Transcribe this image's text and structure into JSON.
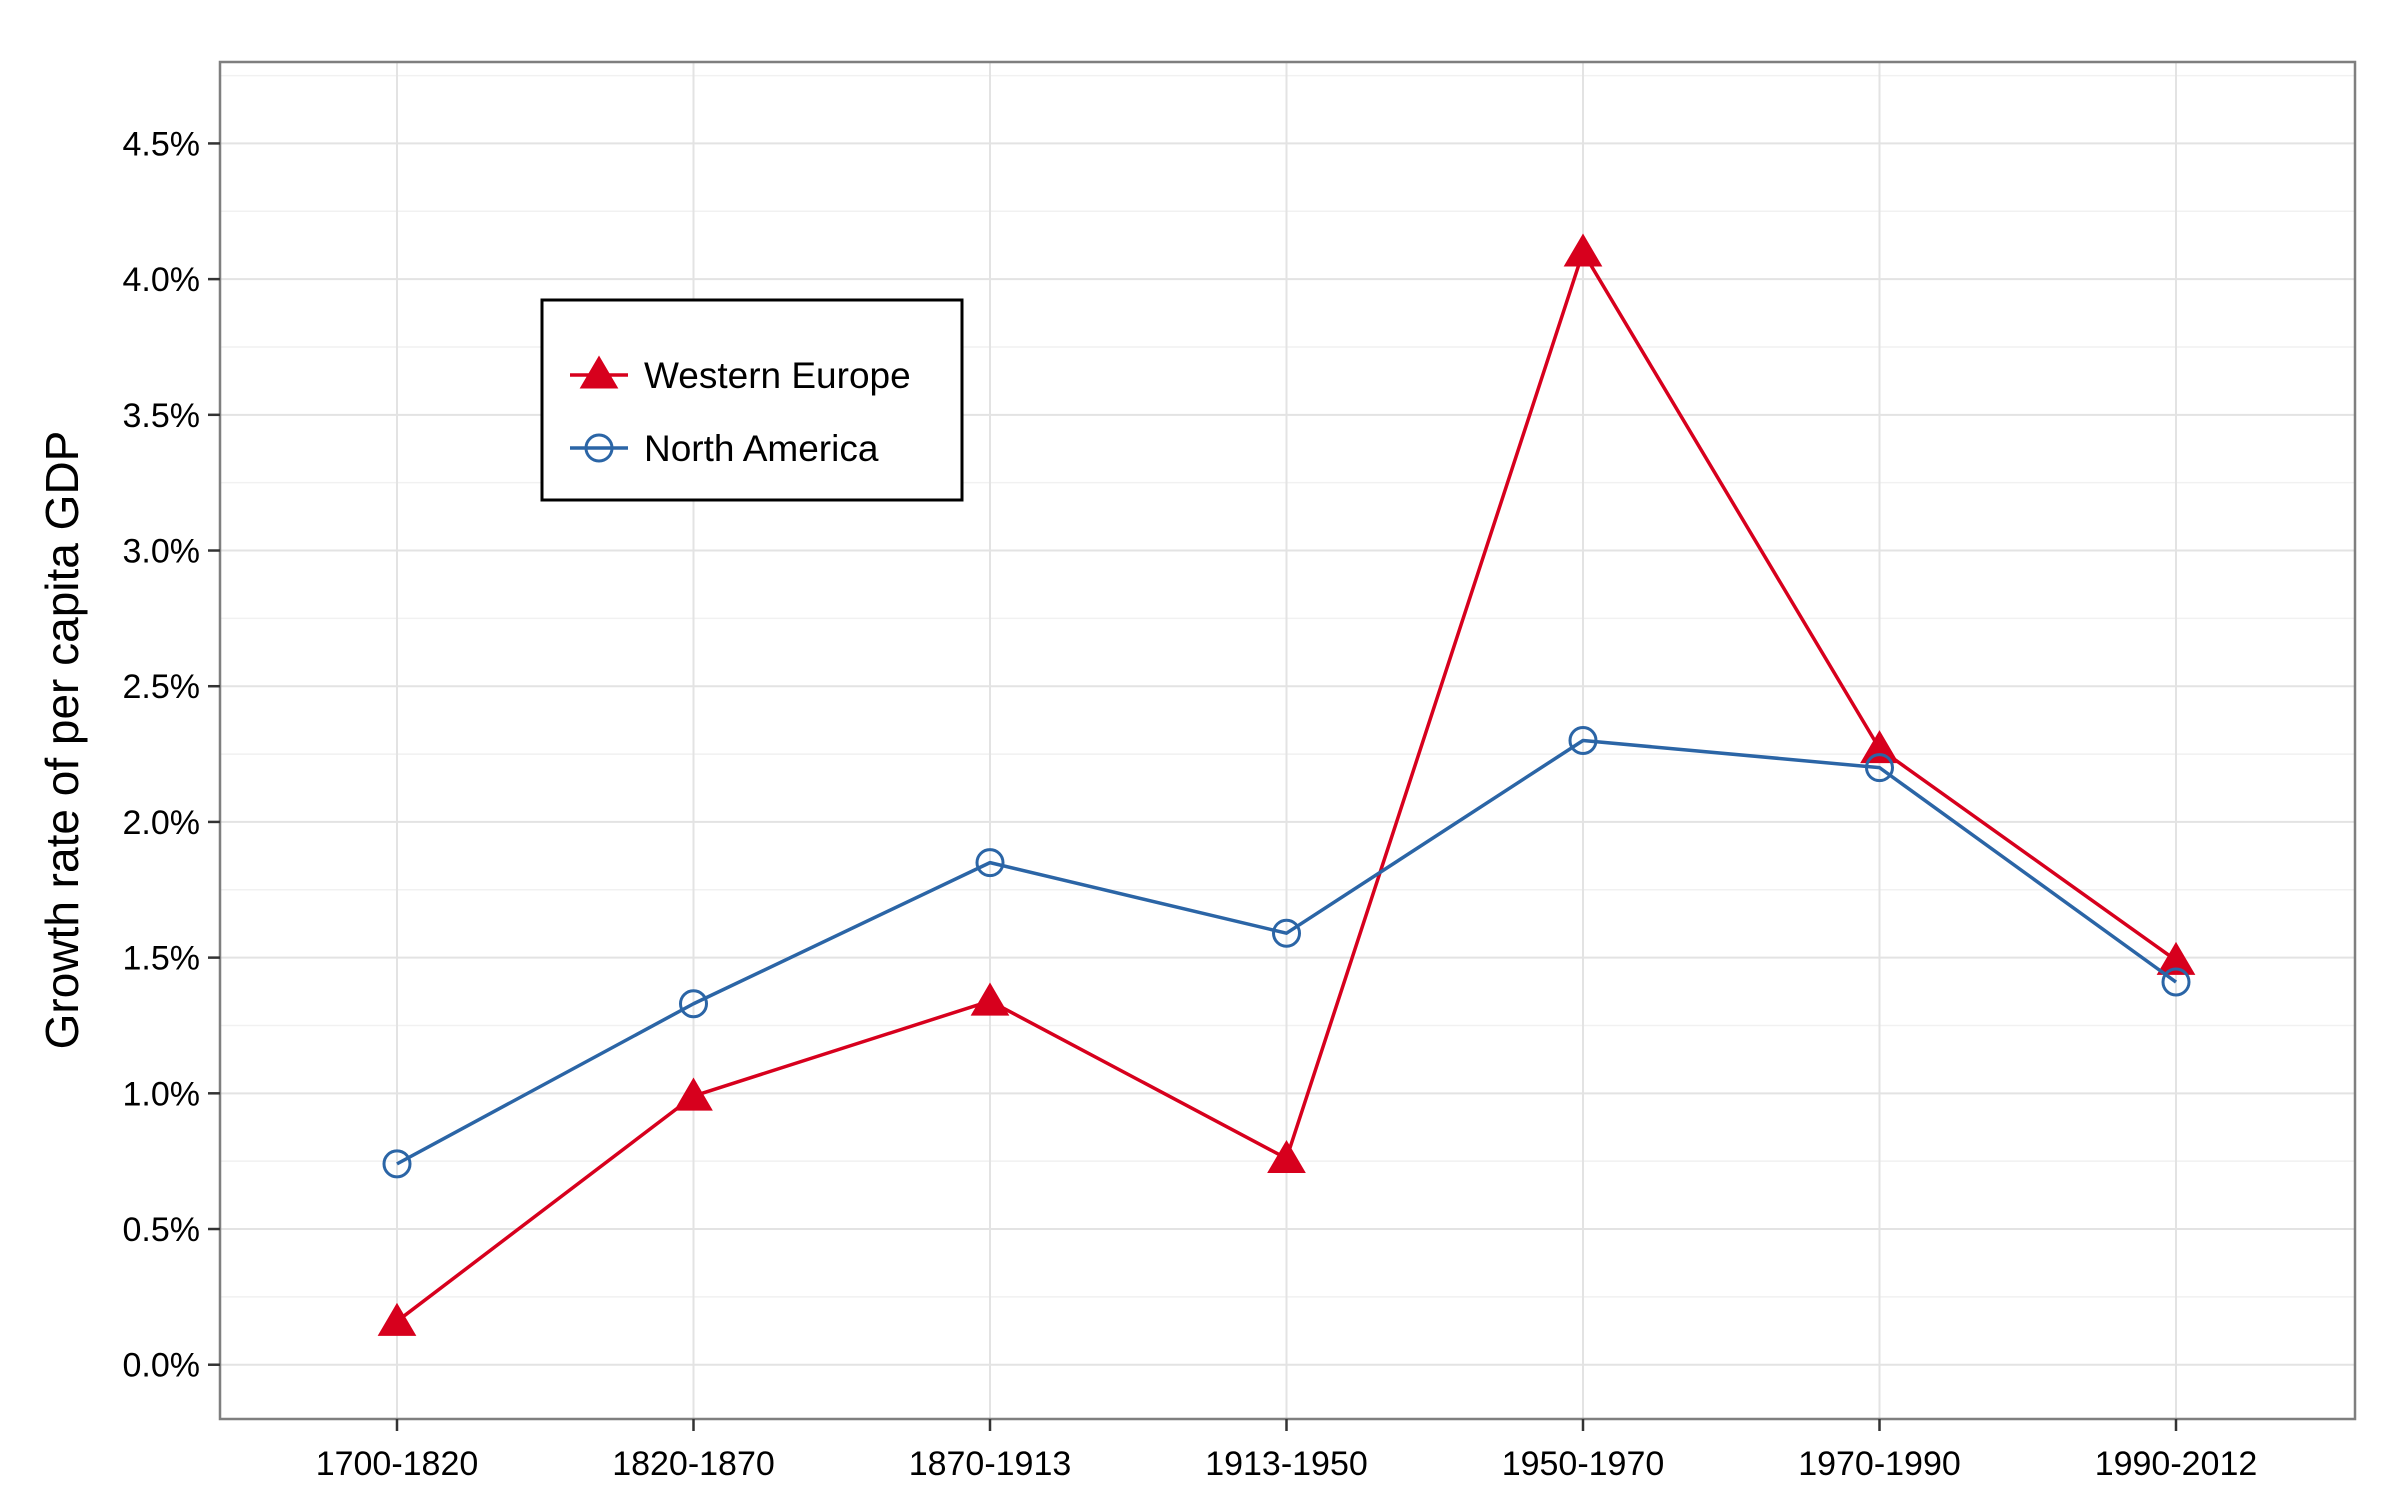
{
  "chart_data": {
    "type": "line",
    "title": "",
    "xlabel": "",
    "ylabel": "Growth rate of per capita GDP",
    "categories": [
      "1700-1820",
      "1820-1870",
      "1870-1913",
      "1913-1950",
      "1950-1970",
      "1970-1990",
      "1990-2012"
    ],
    "y_ticks": [
      "0.0%",
      "0.5%",
      "1.0%",
      "1.5%",
      "2.0%",
      "2.5%",
      "3.0%",
      "3.5%",
      "4.0%",
      "4.5%"
    ],
    "ylim": [
      -0.2,
      4.8
    ],
    "grid": true,
    "legend_position": "top-left",
    "series": [
      {
        "name": "Western Europe",
        "values": [
          0.16,
          0.99,
          1.34,
          0.76,
          4.1,
          2.27,
          1.49
        ],
        "color": "#d7001d",
        "marker": "filled-triangle"
      },
      {
        "name": "North America",
        "values": [
          0.74,
          1.33,
          1.85,
          1.59,
          2.3,
          2.2,
          1.41
        ],
        "color": "#2b65a6",
        "marker": "open-circle"
      }
    ]
  }
}
